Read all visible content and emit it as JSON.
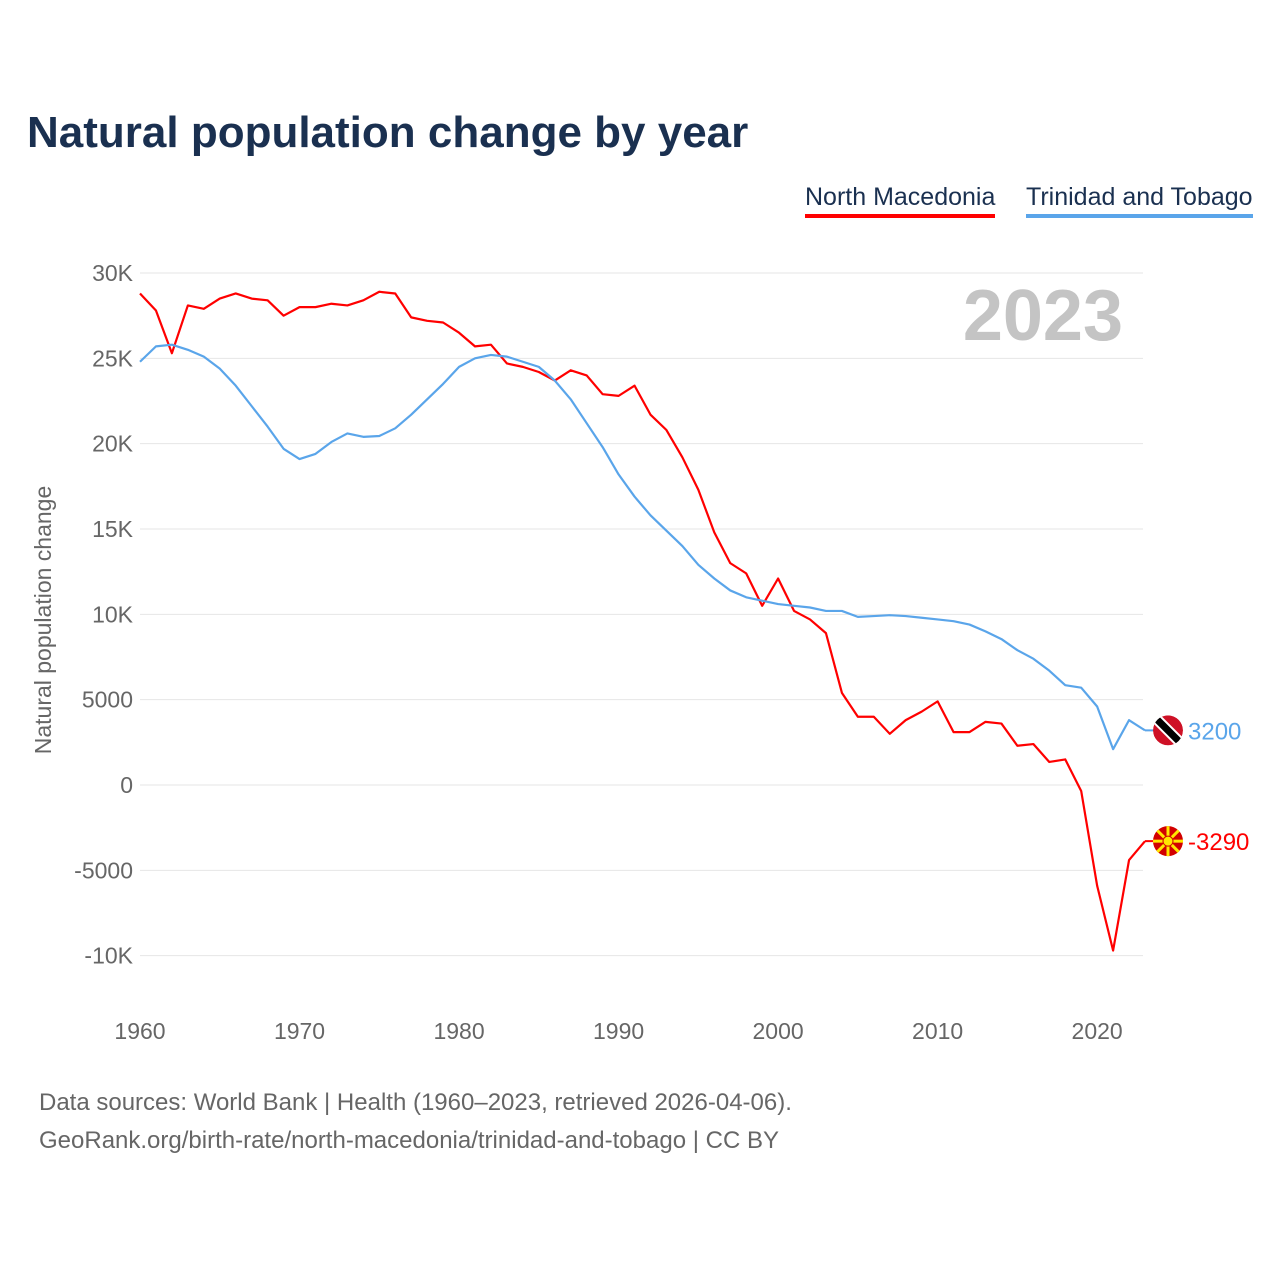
{
  "title": "Natural population change by year",
  "footer": {
    "line1": "Data sources: World Bank | Health (1960–2023, retrieved 2026-04-06).",
    "line2": "GeoRank.org/birth-rate/north-macedonia/trinidad-and-tobago | CC BY"
  },
  "chart_data": {
    "type": "line",
    "title": "Natural population change by year",
    "ylabel": "Natural population change",
    "xlabel": "",
    "year_label": "2023",
    "xlim": [
      1960,
      2023
    ],
    "ylim": [
      -12000,
      30000
    ],
    "x_ticks": [
      1960,
      1970,
      1980,
      1990,
      2000,
      2010,
      2020
    ],
    "y_ticks": [
      {
        "v": 30000,
        "label": "30K"
      },
      {
        "v": 25000,
        "label": "25K"
      },
      {
        "v": 20000,
        "label": "20K"
      },
      {
        "v": 15000,
        "label": "15K"
      },
      {
        "v": 10000,
        "label": "10K"
      },
      {
        "v": 5000,
        "label": "5000"
      },
      {
        "v": 0,
        "label": "0"
      },
      {
        "v": -5000,
        "label": "-5000"
      },
      {
        "v": -10000,
        "label": "-10K"
      }
    ],
    "grid": true,
    "legend_position": "top-right",
    "x_start": 1960,
    "series": [
      {
        "name": "North Macedonia",
        "color": "#ff0000",
        "end_label": "-3290",
        "flag": "north-macedonia",
        "values": [
          28800,
          27800,
          25300,
          28100,
          27900,
          28500,
          28800,
          28500,
          28400,
          27500,
          28000,
          28000,
          28200,
          28100,
          28400,
          28900,
          28800,
          27400,
          27200,
          27100,
          26500,
          25700,
          25800,
          24700,
          24500,
          24200,
          23700,
          24300,
          24000,
          22900,
          22800,
          23400,
          21700,
          20800,
          19200,
          17300,
          14800,
          13000,
          12400,
          10500,
          12100,
          10200,
          9700,
          8900,
          5400,
          4000,
          4000,
          3000,
          3800,
          4300,
          4900,
          3100,
          3100,
          3700,
          3600,
          2300,
          2400,
          1350,
          1500,
          -350,
          -5900,
          -9700,
          -4400,
          -3290
        ]
      },
      {
        "name": "Trinidad and Tobago",
        "color": "#5aa5ea",
        "end_label": "3200",
        "flag": "trinidad-and-tobago",
        "values": [
          24800,
          25700,
          25800,
          25500,
          25100,
          24400,
          23400,
          22200,
          21000,
          19700,
          19100,
          19400,
          20100,
          20600,
          20400,
          20450,
          20900,
          21700,
          22600,
          23500,
          24500,
          25000,
          25200,
          25100,
          24800,
          24500,
          23700,
          22600,
          21200,
          19800,
          18200,
          16900,
          15800,
          14900,
          14000,
          12900,
          12100,
          11400,
          11000,
          10800,
          10600,
          10500,
          10400,
          10200,
          10200,
          9850,
          9900,
          9950,
          9900,
          9800,
          9700,
          9600,
          9400,
          9000,
          8550,
          7900,
          7400,
          6700,
          5850,
          5700,
          4600,
          2100,
          3800,
          3200
        ]
      }
    ]
  }
}
